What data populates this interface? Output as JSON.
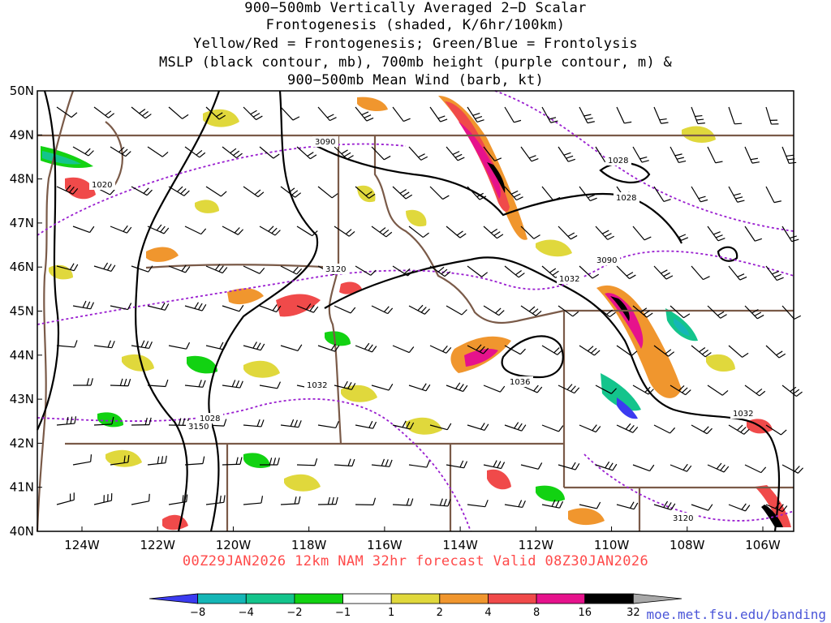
{
  "title": {
    "line1": "900−500mb Vertically Averaged 2−D Scalar",
    "line2": "Frontogenesis (shaded, K/6hr/100km)",
    "line3": "Yellow/Red = Frontogenesis;  Green/Blue = Frontolysis",
    "line4": "MSLP (black contour, mb), 700mb height (purple contour, m) &",
    "line5": "900−500mb Mean Wind (barb, kt)"
  },
  "axes": {
    "lat_labels": [
      "50N",
      "49N",
      "48N",
      "47N",
      "46N",
      "45N",
      "44N",
      "43N",
      "42N",
      "41N",
      "40N"
    ],
    "lon_labels": [
      "124W",
      "122W",
      "120W",
      "118W",
      "116W",
      "114W",
      "112W",
      "110W",
      "108W",
      "106W"
    ]
  },
  "contour_labels": {
    "mslp": [
      "1020",
      "1028",
      "1028",
      "1032",
      "1032",
      "1032",
      "1036",
      "1028"
    ],
    "height": [
      "3090",
      "3120",
      "3090",
      "3150",
      "3120"
    ]
  },
  "valid_text": "00Z29JAN2026 12km NAM 32hr forecast Valid 08Z30JAN2026",
  "colorbar": {
    "ticks": [
      "−8",
      "−4",
      "−2",
      "−1",
      "1",
      "2",
      "4",
      "8",
      "16",
      "32"
    ],
    "colors": [
      "#3b3bf0",
      "#15b6b6",
      "#14c48c",
      "#12d212",
      "#ffffff",
      "#e0d83c",
      "#f0962e",
      "#f04a4a",
      "#e6128c",
      "#000000",
      "#a8a8a8"
    ]
  },
  "credit": "moe.met.fsu.edu/banding",
  "colors": {
    "state_border": "#7a5a48",
    "mslp_contour": "#000000",
    "height_contour": "#9a1fd0",
    "frontogenesis_weak": "#e0d83c",
    "frontogenesis_mod": "#f0962e",
    "frontogenesis_strong": "#f04a4a",
    "frontogenesis_max": "#e6128c",
    "frontolysis": "#12d212"
  }
}
